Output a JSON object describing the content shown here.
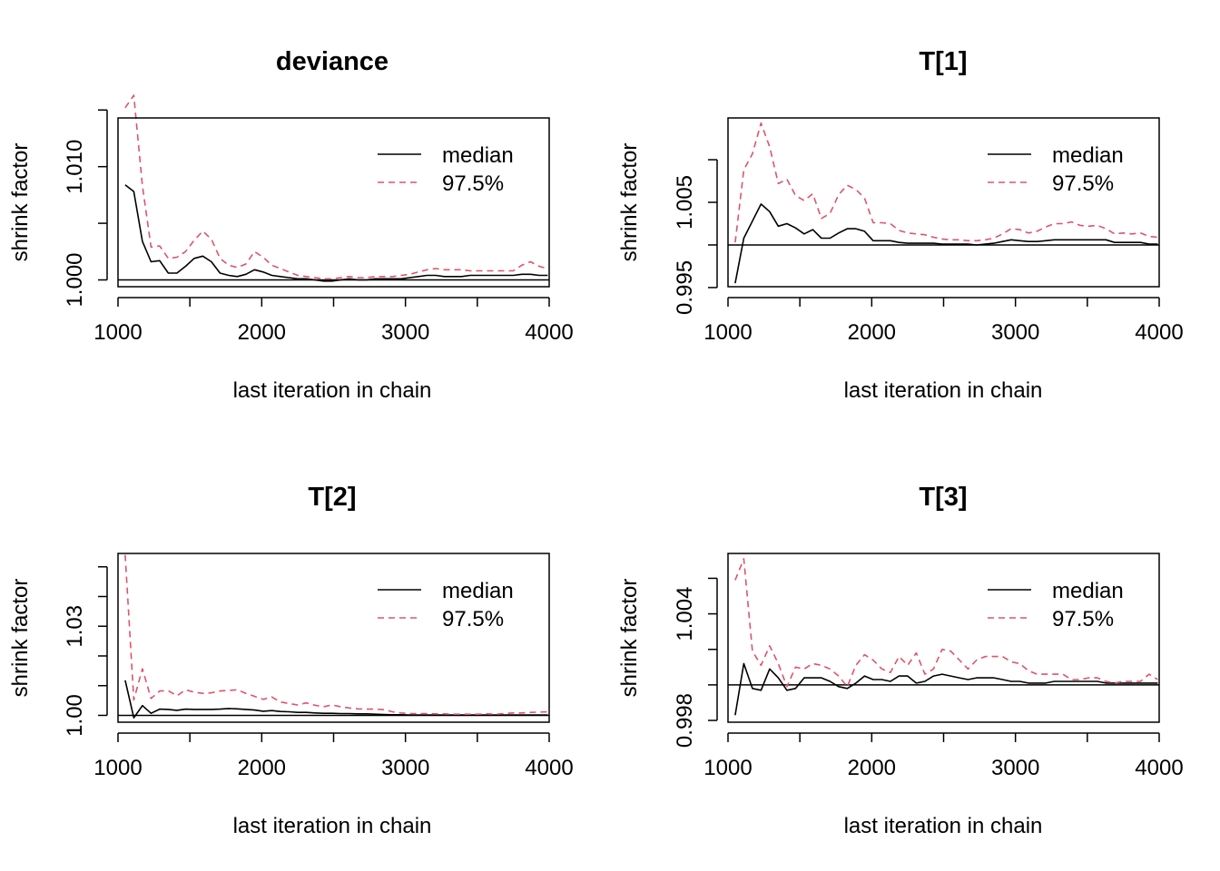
{
  "colors": {
    "median": "#000000",
    "q975": "#DF536B",
    "reference": "#000000"
  },
  "chart_data": [
    {
      "type": "line",
      "title": "deviance",
      "xlabel": "last iteration in chain",
      "ylabel": "shrink factor",
      "xlim": [
        1000,
        4000
      ],
      "ylim": [
        0.9994,
        1.0143
      ],
      "xticks": [
        {
          "v": 1000,
          "label": "1000"
        },
        {
          "v": 2000,
          "label": "2000"
        },
        {
          "v": 3000,
          "label": "3000"
        },
        {
          "v": 4000,
          "label": "4000"
        }
      ],
      "yticks": [
        {
          "v": 1.0,
          "label": "1.000"
        },
        {
          "v": 1.005,
          "label": ""
        },
        {
          "v": 1.01,
          "label": "1.010"
        },
        {
          "v": 1.015,
          "label": ""
        }
      ],
      "reference_line": 1.0,
      "legend": {
        "position": "top-right",
        "entries": [
          {
            "label": "median",
            "series": "median"
          },
          {
            "label": "97.5%",
            "series": "q975"
          }
        ]
      },
      "x": [
        1050,
        1110,
        1170,
        1230,
        1290,
        1350,
        1410,
        1470,
        1530,
        1590,
        1650,
        1710,
        1770,
        1830,
        1890,
        1950,
        2010,
        2070,
        2130,
        2190,
        2250,
        2310,
        2370,
        2430,
        2490,
        2550,
        2610,
        2670,
        2730,
        2790,
        2850,
        2910,
        2970,
        3030,
        3090,
        3150,
        3210,
        3270,
        3330,
        3390,
        3450,
        3510,
        3570,
        3630,
        3690,
        3750,
        3810,
        3870,
        3930,
        3990
      ],
      "series": [
        {
          "name": "median",
          "key": "median",
          "dash": "none",
          "values": [
            1.0084,
            1.0078,
            1.0034,
            1.0016,
            1.0017,
            1.0006,
            1.0006,
            1.0012,
            1.0019,
            1.0021,
            1.0016,
            1.0006,
            1.0004,
            1.0003,
            1.0005,
            1.0009,
            1.0007,
            1.0004,
            1.0003,
            1.0002,
            1.0001,
            1.0001,
            1.0,
            0.9999,
            0.9999,
            1.0,
            1.0001,
            1.0,
            1.0,
            1.0001,
            1.0001,
            1.0001,
            1.0001,
            1.0002,
            1.0003,
            1.0004,
            1.0004,
            1.0003,
            1.0003,
            1.0003,
            1.0004,
            1.0004,
            1.0004,
            1.0004,
            1.0004,
            1.0004,
            1.0005,
            1.0005,
            1.0004,
            1.0004
          ]
        },
        {
          "name": "97.5%",
          "key": "q975",
          "dash": "7,5",
          "values": [
            1.0152,
            1.0163,
            1.0083,
            1.0029,
            1.003,
            1.0019,
            1.002,
            1.0025,
            1.0035,
            1.0043,
            1.0036,
            1.0019,
            1.0013,
            1.0011,
            1.0014,
            1.0025,
            1.002,
            1.0013,
            1.001,
            1.0007,
            1.0004,
            1.0003,
            1.0002,
            1.0001,
            1.0001,
            1.0002,
            1.0003,
            1.0002,
            1.0002,
            1.0003,
            1.0003,
            1.0003,
            1.0004,
            1.0005,
            1.0007,
            1.0009,
            1.001,
            1.0009,
            1.0009,
            1.0009,
            1.0008,
            1.0008,
            1.0008,
            1.0008,
            1.0008,
            1.0008,
            1.0013,
            1.0016,
            1.0012,
            1.001
          ]
        }
      ]
    },
    {
      "type": "line",
      "title": "T[1]",
      "xlabel": "last iteration in chain",
      "ylabel": "shrink factor",
      "xlim": [
        1000,
        4000
      ],
      "ylim": [
        0.9951,
        1.0149
      ],
      "xticks": [
        {
          "v": 1000,
          "label": "1000"
        },
        {
          "v": 2000,
          "label": "2000"
        },
        {
          "v": 3000,
          "label": "3000"
        },
        {
          "v": 4000,
          "label": "4000"
        }
      ],
      "yticks": [
        {
          "v": 0.995,
          "label": "0.995"
        },
        {
          "v": 1.0,
          "label": ""
        },
        {
          "v": 1.005,
          "label": "1.005"
        },
        {
          "v": 1.01,
          "label": ""
        }
      ],
      "reference_line": 1.0,
      "legend": {
        "position": "top-right",
        "entries": [
          {
            "label": "median",
            "series": "median"
          },
          {
            "label": "97.5%",
            "series": "q975"
          }
        ]
      },
      "x": [
        1050,
        1110,
        1170,
        1230,
        1290,
        1350,
        1410,
        1470,
        1530,
        1590,
        1650,
        1710,
        1770,
        1830,
        1890,
        1950,
        2010,
        2070,
        2130,
        2190,
        2250,
        2310,
        2370,
        2430,
        2490,
        2550,
        2610,
        2670,
        2730,
        2790,
        2850,
        2910,
        2970,
        3030,
        3090,
        3150,
        3210,
        3270,
        3330,
        3390,
        3450,
        3510,
        3570,
        3630,
        3690,
        3750,
        3810,
        3870,
        3930,
        3990
      ],
      "series": [
        {
          "name": "median",
          "key": "median",
          "dash": "none",
          "values": [
            0.9955,
            1.0008,
            1.0028,
            1.0048,
            1.0039,
            1.0022,
            1.0025,
            1.002,
            1.0013,
            1.0018,
            1.0008,
            1.0008,
            1.0014,
            1.0019,
            1.0019,
            1.0016,
            1.0005,
            1.0005,
            1.0005,
            1.0003,
            1.0002,
            1.0002,
            1.0002,
            1.0002,
            1.0001,
            1.0001,
            1.0001,
            1.0001,
            1.0,
            1.0001,
            1.0002,
            1.0004,
            1.0006,
            1.0005,
            1.0004,
            1.0004,
            1.0005,
            1.0006,
            1.0006,
            1.0006,
            1.0006,
            1.0006,
            1.0006,
            1.0006,
            1.0003,
            1.0003,
            1.0003,
            1.0003,
            1.0001,
            1.0001
          ]
        },
        {
          "name": "97.5%",
          "key": "q975",
          "dash": "7,5",
          "values": [
            1.0003,
            1.0088,
            1.0107,
            1.0143,
            1.0115,
            1.0072,
            1.0077,
            1.0058,
            1.0052,
            1.006,
            1.0031,
            1.0037,
            1.0059,
            1.007,
            1.0065,
            1.0055,
            1.0026,
            1.0026,
            1.0025,
            1.0017,
            1.0014,
            1.0013,
            1.0012,
            1.0009,
            1.0007,
            1.0006,
            1.0006,
            1.0005,
            1.0005,
            1.0006,
            1.0008,
            1.0013,
            1.0019,
            1.0018,
            1.0014,
            1.0016,
            1.0021,
            1.0025,
            1.0025,
            1.0027,
            1.0023,
            1.0022,
            1.0023,
            1.0019,
            1.0013,
            1.0014,
            1.0013,
            1.0014,
            1.001,
            1.0009
          ]
        }
      ]
    },
    {
      "type": "line",
      "title": "T[2]",
      "xlabel": "last iteration in chain",
      "ylabel": "shrink factor",
      "xlim": [
        1000,
        4000
      ],
      "ylim": [
        0.9977,
        1.0545
      ],
      "xticks": [
        {
          "v": 1000,
          "label": "1000"
        },
        {
          "v": 2000,
          "label": "2000"
        },
        {
          "v": 3000,
          "label": "3000"
        },
        {
          "v": 4000,
          "label": "4000"
        }
      ],
      "yticks": [
        {
          "v": 1.0,
          "label": "1.00"
        },
        {
          "v": 1.01,
          "label": ""
        },
        {
          "v": 1.02,
          "label": ""
        },
        {
          "v": 1.03,
          "label": "1.03"
        },
        {
          "v": 1.04,
          "label": ""
        },
        {
          "v": 1.05,
          "label": ""
        }
      ],
      "reference_line": 1.0,
      "legend": {
        "position": "top-right",
        "entries": [
          {
            "label": "median",
            "series": "median"
          },
          {
            "label": "97.5%",
            "series": "q975"
          }
        ]
      },
      "x": [
        1050,
        1110,
        1170,
        1230,
        1290,
        1350,
        1410,
        1470,
        1530,
        1590,
        1650,
        1710,
        1770,
        1830,
        1890,
        1950,
        2010,
        2070,
        2130,
        2190,
        2250,
        2310,
        2370,
        2430,
        2490,
        2550,
        2610,
        2670,
        2730,
        2790,
        2850,
        2910,
        2970,
        3030,
        3090,
        3150,
        3210,
        3270,
        3330,
        3390,
        3450,
        3510,
        3570,
        3630,
        3690,
        3750,
        3810,
        3870,
        3930,
        3990
      ],
      "series": [
        {
          "name": "median",
          "key": "median",
          "dash": "none",
          "values": [
            1.0118,
            0.9992,
            1.0033,
            1.0007,
            1.0021,
            1.002,
            1.0017,
            1.0021,
            1.002,
            1.002,
            1.002,
            1.0021,
            1.0023,
            1.0022,
            1.002,
            1.0018,
            1.0014,
            1.0016,
            1.0013,
            1.0012,
            1.001,
            1.001,
            1.0008,
            1.0007,
            1.0007,
            1.0006,
            1.0006,
            1.0005,
            1.0005,
            1.0004,
            1.0003,
            1.0002,
            1.0002,
            1.0001,
            1.0001,
            1.0001,
            1.0001,
            1.0001,
            1.0001,
            1.0001,
            1.0001,
            1.0001,
            1.0001,
            1.0001,
            1.0001,
            1.0001,
            1.0001,
            1.0001,
            1.0001,
            1.0001
          ]
        },
        {
          "name": "97.5%",
          "key": "q975",
          "dash": "7,5",
          "values": [
            1.054,
            1.0052,
            1.0157,
            1.0057,
            1.0082,
            1.0083,
            1.0066,
            1.0086,
            1.0078,
            1.0074,
            1.0076,
            1.0082,
            1.0084,
            1.0086,
            1.0074,
            1.0064,
            1.0054,
            1.0062,
            1.0045,
            1.004,
            1.0035,
            1.0042,
            1.0034,
            1.0029,
            1.0035,
            1.0029,
            1.0025,
            1.0022,
            1.0021,
            1.0021,
            1.0019,
            1.0012,
            1.0008,
            1.0006,
            1.0006,
            1.0006,
            1.0005,
            1.0005,
            1.0004,
            1.0004,
            1.0004,
            1.0004,
            1.0005,
            1.0004,
            1.0006,
            1.0008,
            1.0008,
            1.001,
            1.0011,
            1.0012
          ]
        }
      ]
    },
    {
      "type": "line",
      "title": "T[3]",
      "xlabel": "last iteration in chain",
      "ylabel": "shrink factor",
      "xlim": [
        1000,
        4000
      ],
      "ylim": [
        0.9979,
        1.0074
      ],
      "xticks": [
        {
          "v": 1000,
          "label": "1000"
        },
        {
          "v": 2000,
          "label": "2000"
        },
        {
          "v": 3000,
          "label": "3000"
        },
        {
          "v": 4000,
          "label": "4000"
        }
      ],
      "yticks": [
        {
          "v": 0.998,
          "label": "0.998"
        },
        {
          "v": 1.0,
          "label": ""
        },
        {
          "v": 1.002,
          "label": ""
        },
        {
          "v": 1.004,
          "label": "1.004"
        },
        {
          "v": 1.006,
          "label": ""
        }
      ],
      "reference_line": 1.0,
      "legend": {
        "position": "top-right",
        "entries": [
          {
            "label": "median",
            "series": "median"
          },
          {
            "label": "97.5%",
            "series": "q975"
          }
        ]
      },
      "x": [
        1050,
        1110,
        1170,
        1230,
        1290,
        1350,
        1410,
        1470,
        1530,
        1590,
        1650,
        1710,
        1770,
        1830,
        1890,
        1950,
        2010,
        2070,
        2130,
        2190,
        2250,
        2310,
        2370,
        2430,
        2490,
        2550,
        2610,
        2670,
        2730,
        2790,
        2850,
        2910,
        2970,
        3030,
        3090,
        3150,
        3210,
        3270,
        3330,
        3390,
        3450,
        3510,
        3570,
        3630,
        3690,
        3750,
        3810,
        3870,
        3930,
        3990
      ],
      "series": [
        {
          "name": "median",
          "key": "median",
          "dash": "none",
          "values": [
            0.9983,
            1.0012,
            0.9998,
            0.9997,
            1.0009,
            1.0004,
            0.9997,
            0.9998,
            1.0004,
            1.0004,
            1.0004,
            1.0002,
            0.9999,
            0.9998,
            1.0001,
            1.0005,
            1.0003,
            1.0003,
            1.0002,
            1.0005,
            1.0005,
            1.0001,
            1.0002,
            1.0005,
            1.0006,
            1.0005,
            1.0004,
            1.0003,
            1.0004,
            1.0004,
            1.0004,
            1.0003,
            1.0002,
            1.0002,
            1.0001,
            1.0001,
            1.0001,
            1.0002,
            1.0002,
            1.0002,
            1.0002,
            1.0002,
            1.0002,
            1.0001,
            1.0001,
            1.0001,
            1.0001,
            1.0001,
            1.0001,
            1.0001
          ]
        },
        {
          "name": "97.5%",
          "key": "q975",
          "dash": "7,5",
          "values": [
            1.0059,
            1.0071,
            1.0019,
            1.0011,
            1.0022,
            1.0012,
            0.9999,
            1.001,
            1.0009,
            1.0012,
            1.0011,
            1.0009,
            1.0005,
            0.9999,
            1.0011,
            1.0017,
            1.0014,
            1.0009,
            1.0007,
            1.0016,
            1.0011,
            1.0018,
            1.0006,
            1.0009,
            1.002,
            1.0019,
            1.0014,
            1.0009,
            1.0014,
            1.0016,
            1.0016,
            1.0016,
            1.0013,
            1.0012,
            1.0008,
            1.0006,
            1.0006,
            1.0006,
            1.0006,
            1.0003,
            1.0003,
            1.0004,
            1.0004,
            1.0002,
            1.0001,
            1.0002,
            1.0002,
            1.0002,
            1.0006,
            1.0003
          ]
        }
      ]
    }
  ]
}
